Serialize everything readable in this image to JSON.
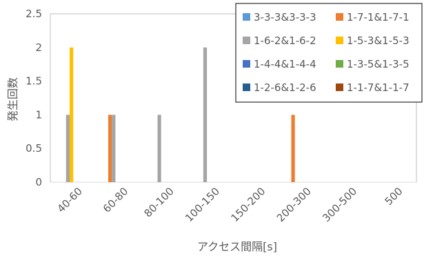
{
  "chart_data": {
    "type": "bar",
    "title": "",
    "xlabel": "アクセス間隔[s]",
    "ylabel": "発生回数",
    "ylim": [
      0,
      2.5
    ],
    "yticks": [
      "0",
      "0.5",
      "1",
      "1.5",
      "2",
      "2.5"
    ],
    "categories": [
      "40-60",
      "60-80",
      "80-100",
      "100-150",
      "150-200",
      "200-300",
      "300-500",
      "500"
    ],
    "legend_position": "top-right",
    "grid": false,
    "series": [
      {
        "name": "3-3-3&3-3-3",
        "color": "#5b9bd5",
        "values": [
          0,
          0,
          0,
          0,
          0,
          0,
          0,
          0
        ]
      },
      {
        "name": "1-7-1&1-7-1",
        "color": "#ed7d31",
        "values": [
          0,
          1,
          0,
          0,
          0,
          1,
          0,
          0
        ]
      },
      {
        "name": "1-6-2&1-6-2",
        "color": "#a5a5a5",
        "values": [
          1,
          1,
          1,
          2,
          0,
          0,
          0,
          0
        ]
      },
      {
        "name": "1-5-3&1-5-3",
        "color": "#ffc000",
        "values": [
          2,
          0,
          0,
          0,
          0,
          0,
          0,
          0
        ]
      },
      {
        "name": "1-4-4&1-4-4",
        "color": "#4472c4",
        "values": [
          0,
          0,
          0,
          0,
          0,
          0,
          0,
          0
        ]
      },
      {
        "name": "1-3-5&1-3-5",
        "color": "#70ad47",
        "values": [
          0,
          0,
          0,
          0,
          0,
          0,
          0,
          0
        ]
      },
      {
        "name": "1-2-6&1-2-6",
        "color": "#255e91",
        "values": [
          0,
          0,
          0,
          0,
          0,
          0,
          0,
          0
        ]
      },
      {
        "name": "1-1-7&1-1-7",
        "color": "#9e480e",
        "values": [
          0,
          0,
          0,
          0,
          0,
          0,
          0,
          0
        ]
      }
    ]
  }
}
